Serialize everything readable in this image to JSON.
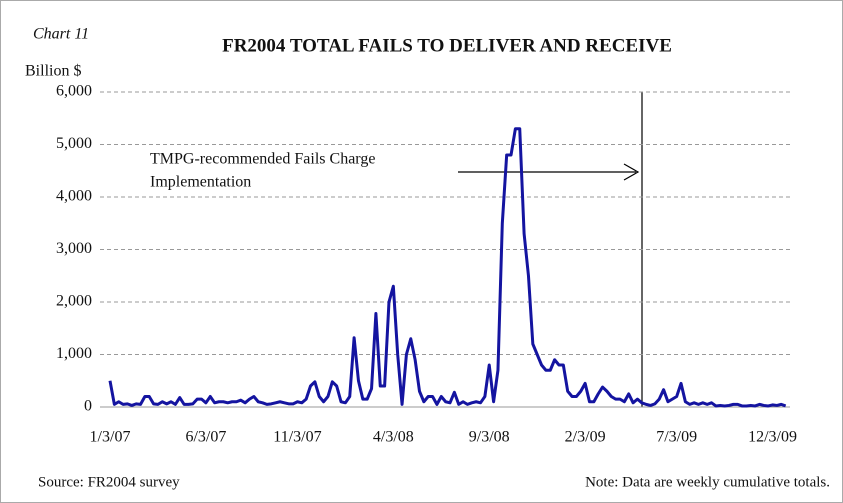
{
  "chart_data": {
    "type": "line",
    "label": "Chart 11",
    "title": "FR2004 TOTAL FAILS TO DELIVER AND RECEIVE",
    "ylabel": "Billion $",
    "annotation": [
      "TMPG-recommended Fails Charge",
      "Implementation"
    ],
    "source": "Source: FR2004 survey",
    "note": "Note: Data are weekly cumulative totals.",
    "color": "#1414a0",
    "grid": true,
    "ylim": [
      0,
      6000
    ],
    "yticks": [
      0,
      {
        "value": 1000,
        "label": "1,000"
      },
      {
        "value": 2000,
        "label": "2,000"
      },
      {
        "value": 3000,
        "label": "3,000"
      },
      {
        "value": 4000,
        "label": "4,000"
      },
      {
        "value": 5000,
        "label": "5,000"
      },
      {
        "value": 6000,
        "label": "6,000"
      }
    ],
    "categories": [
      "1/3/07",
      null,
      null,
      null,
      null,
      null,
      null,
      null,
      null,
      null,
      null,
      null,
      null,
      null,
      null,
      null,
      null,
      null,
      null,
      null,
      null,
      null,
      "6/3/07",
      null,
      null,
      null,
      null,
      null,
      null,
      null,
      null,
      null,
      null,
      null,
      null,
      null,
      null,
      null,
      null,
      null,
      null,
      null,
      null,
      "11/3/07",
      null,
      null,
      null,
      null,
      null,
      null,
      null,
      null,
      null,
      null,
      null,
      null,
      null,
      null,
      null,
      null,
      null,
      null,
      null,
      null,
      null,
      "4/3/08",
      null,
      null,
      null,
      null,
      null,
      null,
      null,
      null,
      null,
      null,
      null,
      null,
      null,
      null,
      null,
      null,
      null,
      null,
      null,
      null,
      null,
      "9/3/08",
      null,
      null,
      null,
      null,
      null,
      null,
      null,
      null,
      null,
      null,
      null,
      null,
      null,
      null,
      null,
      null,
      null,
      null,
      null,
      null,
      null,
      "2/3/09",
      null,
      null,
      null,
      null,
      null,
      null,
      null,
      null,
      null,
      null,
      null,
      null,
      null,
      null,
      null,
      null,
      null,
      null,
      null,
      null,
      "7/3/09",
      null,
      null,
      null,
      null,
      null,
      null,
      null,
      null,
      null,
      null,
      null,
      null,
      null,
      null,
      null,
      null,
      null,
      null,
      null,
      null,
      null,
      "12/3/09",
      null,
      null,
      null
    ],
    "values": [
      500,
      50,
      100,
      50,
      60,
      30,
      60,
      50,
      200,
      200,
      60,
      50,
      100,
      60,
      100,
      50,
      180,
      50,
      50,
      60,
      150,
      150,
      80,
      200,
      80,
      100,
      100,
      80,
      100,
      100,
      130,
      80,
      150,
      200,
      100,
      80,
      50,
      60,
      80,
      100,
      80,
      60,
      60,
      100,
      80,
      150,
      400,
      480,
      200,
      100,
      200,
      480,
      400,
      100,
      80,
      200,
      1320,
      500,
      150,
      150,
      350,
      1780,
      400,
      400,
      2000,
      2300,
      1000,
      50,
      1000,
      1300,
      900,
      300,
      100,
      200,
      200,
      50,
      200,
      100,
      80,
      280,
      50,
      100,
      50,
      80,
      100,
      80,
      200,
      800,
      100,
      700,
      3500,
      4800,
      4800,
      5300,
      5300,
      3300,
      2500,
      1200,
      1000,
      800,
      700,
      700,
      900,
      800,
      800,
      300,
      200,
      200,
      300,
      450,
      100,
      100,
      250,
      380,
      300,
      200,
      150,
      150,
      100,
      250,
      80,
      150,
      80,
      50,
      30,
      60,
      150,
      330,
      100,
      150,
      200,
      450,
      100,
      50,
      80,
      50,
      80,
      50,
      80,
      20,
      30,
      20,
      30,
      50,
      50,
      20,
      20,
      30,
      20,
      50,
      30,
      20,
      40,
      30,
      50,
      20
    ]
  }
}
